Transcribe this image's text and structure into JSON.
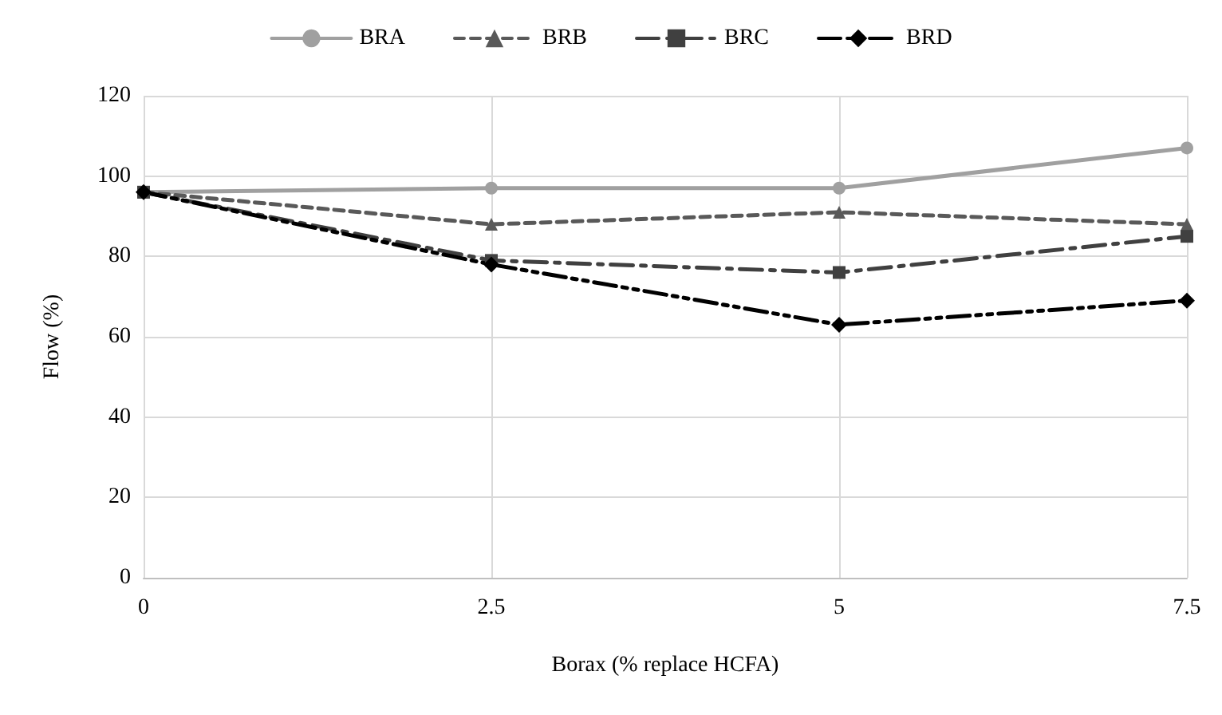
{
  "chart_data": {
    "type": "line",
    "xlabel": "Borax (% replace HCFA)",
    "ylabel": "Flow (%)",
    "x": [
      0,
      2.5,
      5,
      7.5
    ],
    "series": [
      {
        "name": "BRA",
        "color": "#a0a0a0",
        "marker": "circle",
        "line_style": "solid",
        "values": [
          96,
          97,
          97,
          107
        ]
      },
      {
        "name": "BRB",
        "color": "#595959",
        "marker": "triangle",
        "line_style": "dashed",
        "values": [
          96,
          88,
          91,
          88
        ]
      },
      {
        "name": "BRC",
        "color": "#404040",
        "marker": "square",
        "line_style": "dashed",
        "values": [
          96,
          79,
          76,
          85
        ]
      },
      {
        "name": "BRD",
        "color": "#000000",
        "marker": "diamond",
        "line_style": "dashed",
        "values": [
          96,
          78,
          63,
          69
        ]
      }
    ],
    "xlim": [
      0,
      7.5
    ],
    "xticks": [
      0,
      2.5,
      5,
      7.5
    ],
    "ylim": [
      0,
      120
    ],
    "yticks": [
      0,
      20,
      40,
      60,
      80,
      100,
      120
    ],
    "grid": true,
    "legend": "top"
  }
}
